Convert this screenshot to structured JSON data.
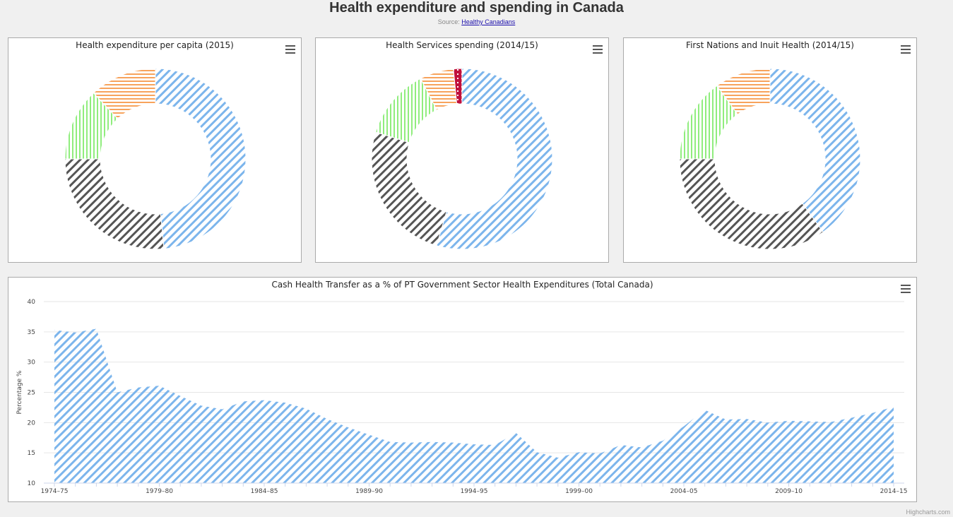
{
  "page": {
    "title": "Health expenditure and spending in Canada",
    "source_prefix": "Source: ",
    "source_link": "Healthy Canadians",
    "credits": "Highcharts.com"
  },
  "colors": {
    "blue": "#7cb5ec",
    "dark": "#555555",
    "green": "#90ed7d",
    "orange": "#f7a35c",
    "red": "#c0103c"
  },
  "chart_data": [
    {
      "type": "pie",
      "title": "Health expenditure per capita (2015)",
      "slices": [
        {
          "value": 48.5,
          "color": "#7cb5ec",
          "pattern": "diagonal"
        },
        {
          "value": 26.5,
          "color": "#555555",
          "pattern": "diagonal"
        },
        {
          "value": 13.0,
          "color": "#90ed7d",
          "pattern": "vertical"
        },
        {
          "value": 12.0,
          "color": "#f7a35c",
          "pattern": "horizontal"
        }
      ]
    },
    {
      "type": "pie",
      "title": "Health Services spending (2014/15)",
      "slices": [
        {
          "value": 54.0,
          "color": "#7cb5ec",
          "pattern": "diagonal"
        },
        {
          "value": 25.0,
          "color": "#555555",
          "pattern": "diagonal"
        },
        {
          "value": 12.5,
          "color": "#90ed7d",
          "pattern": "vertical"
        },
        {
          "value": 6.0,
          "color": "#f7a35c",
          "pattern": "horizontal"
        },
        {
          "value": 1.5,
          "color": "#c0103c",
          "pattern": "dots"
        }
      ]
    },
    {
      "type": "pie",
      "title": "First Nations and Inuit Health (2014/15)",
      "slices": [
        {
          "value": 40.0,
          "color": "#7cb5ec",
          "pattern": "diagonal"
        },
        {
          "value": 35.0,
          "color": "#555555",
          "pattern": "diagonal"
        },
        {
          "value": 15.0,
          "color": "#90ed7d",
          "pattern": "vertical"
        },
        {
          "value": 10.0,
          "color": "#f7a35c",
          "pattern": "horizontal"
        }
      ]
    },
    {
      "type": "area",
      "title": "Cash Health Transfer as a % of PT Government Sector Health Expenditures (Total Canada)",
      "ylabel": "Percentage %",
      "ylim": [
        10,
        40
      ],
      "yticks": [
        10,
        15,
        20,
        25,
        30,
        35,
        40
      ],
      "grid": true,
      "categories": [
        "1974–75",
        "1975–76",
        "1976–77",
        "1977–78",
        "1978–79",
        "1979–80",
        "1980–81",
        "1981–82",
        "1982–83",
        "1983–84",
        "1984–85",
        "1985–86",
        "1986–87",
        "1987–88",
        "1988–89",
        "1989–90",
        "1990–91",
        "1991–92",
        "1992–93",
        "1993–94",
        "1994–95",
        "1995–96",
        "1996–97",
        "1997–98",
        "1998–99",
        "1999–00",
        "2000–01",
        "2001–02",
        "2002–03",
        "2003–04",
        "2004–05",
        "2005–06",
        "2006–07",
        "2007–08",
        "2008–09",
        "2009–10",
        "2010–11",
        "2011–12",
        "2012–13",
        "2013–14",
        "2014–15"
      ],
      "labeled_ticks": [
        "1974–75",
        "1979–80",
        "1984–85",
        "1989–90",
        "1994–95",
        "1999–00",
        "2004–05",
        "2009–10",
        "2014–15"
      ],
      "values": [
        35.3,
        34.9,
        35.5,
        25.0,
        25.8,
        26.1,
        24.4,
        22.8,
        22.2,
        23.5,
        23.7,
        23.3,
        22.3,
        20.6,
        19.2,
        18.0,
        16.8,
        16.7,
        16.8,
        16.7,
        16.4,
        16.3,
        18.3,
        15.1,
        14.2,
        15.1,
        14.9,
        16.3,
        15.9,
        17.0,
        19.4,
        22.1,
        20.5,
        20.6,
        20.0,
        20.3,
        20.2,
        20.1,
        20.8,
        21.6,
        22.6
      ]
    }
  ]
}
